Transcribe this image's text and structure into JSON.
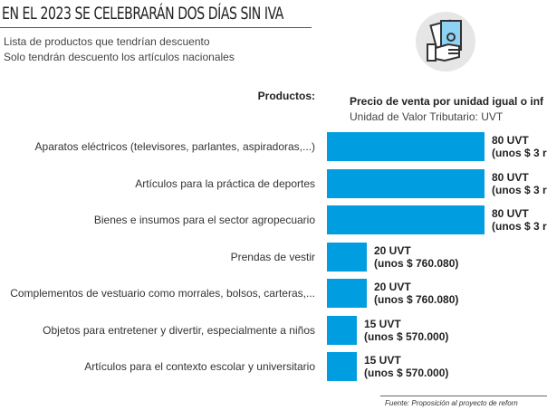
{
  "header": {
    "title": "EN EL 2023 SE CELEBRARÁN DOS DÍAS SIN IVA",
    "subtitle1": "Lista de productos que tendrían descuento",
    "subtitle2": "Solo tendrán descuento los artículos nacionales",
    "icon": "money-in-hand-icon"
  },
  "chart_data": {
    "type": "bar",
    "orientation": "horizontal",
    "categories_header": "Productos:",
    "title": "Precio de venta por unidad igual o inf",
    "subtitle": "Unidad de Valor Tributario: UVT",
    "unit": "UVT",
    "color": "#009ee0",
    "categories": [
      "Aparatos eléctricos (televisores, parlantes, aspiradoras,...)",
      "Artículos para la práctica de deportes",
      "Bienes e insumos para el sector agropecuario",
      "Prendas de vestir",
      "Complementos de vestuario como morrales, bolsos, carteras,...",
      "Objetos para entretener y divertir, especialmente a niños",
      "Artículos para el contexto escolar y universitario"
    ],
    "values": [
      80,
      80,
      80,
      20,
      20,
      15,
      15
    ],
    "value_labels": [
      "80 UVT",
      "80 UVT",
      "80 UVT",
      "20 UVT",
      "20 UVT",
      "15 UVT",
      "15 UVT"
    ],
    "price_labels": [
      "(unos $ 3 r",
      "(unos $ 3 r",
      "(unos $ 3 r",
      "(unos $ 760.080)",
      "(unos $ 760.080)",
      "(unos $ 570.000)",
      "(unos $ 570.000)"
    ]
  },
  "footer": {
    "source": "Fuente: Proposición al proyecto de reforn"
  }
}
